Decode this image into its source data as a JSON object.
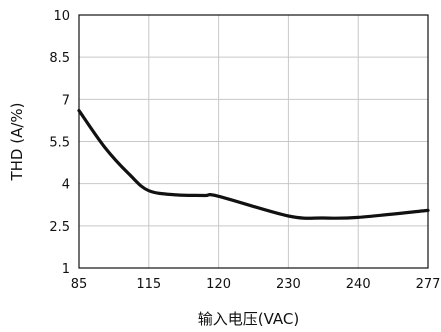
{
  "chart_data": {
    "type": "line",
    "title": "",
    "xlabel": "输入电压(VAC)",
    "ylabel": "THD  (A/%)",
    "x_categories": [
      "85",
      "115",
      "120",
      "230",
      "240",
      "277"
    ],
    "y_ticks": [
      "10",
      "8.5",
      "7",
      "5.5",
      "4",
      "2.5",
      "1"
    ],
    "ylim": [
      1,
      10
    ],
    "grid": true,
    "series": [
      {
        "color": "#111111",
        "points": [
          [
            85,
            6.6
          ],
          [
            96,
            5.3
          ],
          [
            107,
            4.3
          ],
          [
            115,
            3.75
          ],
          [
            117,
            3.6
          ],
          [
            119,
            3.58
          ],
          [
            120,
            3.55
          ],
          [
            230,
            2.85
          ],
          [
            235,
            2.78
          ],
          [
            240,
            2.8
          ],
          [
            277,
            3.05
          ]
        ]
      }
    ],
    "colors": {
      "axis": "#111111",
      "grid": "#c8c8c8",
      "line": "#111111"
    }
  }
}
